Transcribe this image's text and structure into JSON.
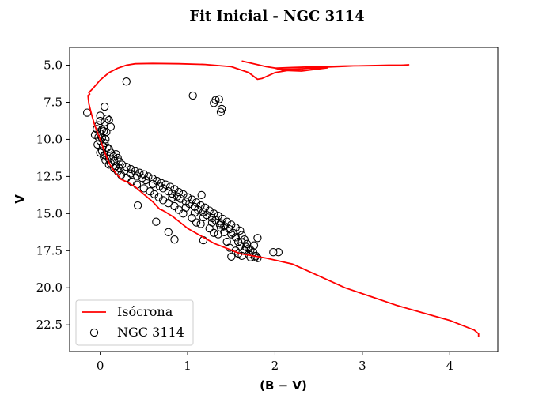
{
  "chart_data": {
    "type": "scatter",
    "title": "Fit Inicial - NGC 3114",
    "xlabel": "(B − V)",
    "ylabel": "V",
    "xlim": [
      -0.35,
      4.55
    ],
    "ylim": [
      24.3,
      3.8
    ],
    "y_inverted": true,
    "xticks": [
      0,
      1,
      2,
      3,
      4
    ],
    "yticks": [
      5.0,
      7.5,
      10.0,
      12.5,
      15.0,
      17.5,
      20.0,
      22.5
    ],
    "xtick_labels": [
      "0",
      "1",
      "2",
      "3",
      "4"
    ],
    "ytick_labels": [
      "5.0",
      "7.5",
      "10.0",
      "12.5",
      "15.0",
      "17.5",
      "20.0",
      "22.5"
    ],
    "grid": false,
    "legend_position": "lower-left",
    "series": [
      {
        "name": "Isócrona",
        "type": "line",
        "color": "#ff0000",
        "points": [
          [
            4.33,
            23.3
          ],
          [
            4.33,
            23.1
          ],
          [
            4.28,
            22.85
          ],
          [
            4.0,
            22.2
          ],
          [
            3.7,
            21.7
          ],
          [
            3.4,
            21.2
          ],
          [
            3.1,
            20.6
          ],
          [
            2.8,
            20.0
          ],
          [
            2.5,
            19.2
          ],
          [
            2.2,
            18.4
          ],
          [
            1.9,
            18.0
          ],
          [
            1.6,
            17.7
          ],
          [
            1.3,
            17.0
          ],
          [
            1.0,
            16.0
          ],
          [
            0.83,
            15.2
          ],
          [
            0.75,
            14.9
          ],
          [
            0.72,
            14.8
          ],
          [
            0.68,
            14.7
          ],
          [
            0.6,
            14.2
          ],
          [
            0.5,
            13.7
          ],
          [
            0.4,
            13.2
          ],
          [
            0.3,
            12.85
          ],
          [
            0.24,
            12.7
          ],
          [
            0.22,
            12.55
          ],
          [
            0.18,
            12.3
          ],
          [
            0.12,
            11.8
          ],
          [
            0.08,
            11.3
          ],
          [
            0.04,
            10.7
          ],
          [
            0.0,
            10.0
          ],
          [
            -0.06,
            9.1
          ],
          [
            -0.1,
            8.3
          ],
          [
            -0.13,
            7.6
          ],
          [
            -0.14,
            7.05
          ],
          [
            -0.12,
            6.95
          ],
          [
            -0.13,
            6.85
          ],
          [
            -0.08,
            6.55
          ],
          [
            0.0,
            6.0
          ],
          [
            0.1,
            5.5
          ],
          [
            0.2,
            5.2
          ],
          [
            0.3,
            5.0
          ],
          [
            0.4,
            4.9
          ],
          [
            0.6,
            4.88
          ],
          [
            0.9,
            4.9
          ],
          [
            1.2,
            4.95
          ],
          [
            1.5,
            5.1
          ],
          [
            1.7,
            5.5
          ],
          [
            1.8,
            5.95
          ],
          [
            1.85,
            5.9
          ],
          [
            2.0,
            5.5
          ],
          [
            2.2,
            5.3
          ],
          [
            2.5,
            5.15
          ],
          [
            2.9,
            5.05
          ],
          [
            3.3,
            5.0
          ],
          [
            3.5,
            5.0
          ],
          [
            3.53,
            4.97
          ],
          [
            3.4,
            5.02
          ],
          [
            2.8,
            5.05
          ],
          [
            2.2,
            5.15
          ],
          [
            2.0,
            5.2
          ],
          [
            2.1,
            5.35
          ],
          [
            2.3,
            5.4
          ],
          [
            2.6,
            5.18
          ],
          [
            2.1,
            5.28
          ],
          [
            1.9,
            5.1
          ],
          [
            1.62,
            4.72
          ]
        ]
      },
      {
        "name": "NGC 3114",
        "type": "scatter",
        "marker": "open-circle",
        "color": "#000000",
        "points": [
          [
            0.3,
            6.1
          ],
          [
            1.06,
            7.05
          ],
          [
            1.36,
            7.3
          ],
          [
            1.32,
            7.35
          ],
          [
            1.3,
            7.55
          ],
          [
            1.39,
            7.95
          ],
          [
            1.38,
            8.15
          ],
          [
            0.05,
            7.8
          ],
          [
            -0.15,
            8.2
          ],
          [
            0.0,
            8.4
          ],
          [
            0.08,
            8.6
          ],
          [
            0.1,
            8.7
          ],
          [
            0.0,
            8.75
          ],
          [
            0.05,
            8.85
          ],
          [
            -0.02,
            9.05
          ],
          [
            -0.04,
            9.3
          ],
          [
            0.02,
            9.35
          ],
          [
            0.04,
            9.45
          ],
          [
            0.0,
            9.6
          ],
          [
            -0.06,
            9.7
          ],
          [
            -0.02,
            9.85
          ],
          [
            0.06,
            10.0
          ],
          [
            0.0,
            10.1
          ],
          [
            -0.03,
            10.35
          ],
          [
            0.03,
            10.45
          ],
          [
            0.08,
            10.55
          ],
          [
            0.1,
            10.65
          ],
          [
            0.02,
            10.8
          ],
          [
            0.12,
            10.9
          ],
          [
            0.18,
            11.0
          ],
          [
            0.05,
            11.05
          ],
          [
            0.15,
            11.15
          ],
          [
            0.2,
            11.25
          ],
          [
            0.1,
            11.3
          ],
          [
            0.16,
            11.45
          ],
          [
            0.22,
            11.5
          ],
          [
            0.12,
            11.6
          ],
          [
            0.25,
            11.7
          ],
          [
            0.18,
            11.8
          ],
          [
            0.3,
            11.85
          ],
          [
            0.22,
            11.95
          ],
          [
            0.35,
            12.0
          ],
          [
            0.28,
            12.1
          ],
          [
            0.4,
            12.15
          ],
          [
            0.45,
            12.25
          ],
          [
            0.35,
            12.3
          ],
          [
            0.5,
            12.35
          ],
          [
            0.42,
            12.45
          ],
          [
            0.55,
            12.5
          ],
          [
            0.48,
            12.6
          ],
          [
            0.6,
            12.65
          ],
          [
            0.52,
            12.75
          ],
          [
            0.65,
            12.8
          ],
          [
            0.7,
            12.95
          ],
          [
            0.6,
            13.0
          ],
          [
            0.75,
            13.05
          ],
          [
            0.68,
            13.15
          ],
          [
            0.8,
            13.2
          ],
          [
            0.72,
            13.3
          ],
          [
            0.85,
            13.35
          ],
          [
            0.78,
            13.5
          ],
          [
            0.9,
            13.55
          ],
          [
            0.82,
            13.65
          ],
          [
            0.95,
            13.7
          ],
          [
            0.88,
            13.85
          ],
          [
            1.0,
            13.9
          ],
          [
            0.92,
            14.0
          ],
          [
            1.05,
            14.05
          ],
          [
            0.98,
            14.2
          ],
          [
            1.1,
            14.25
          ],
          [
            1.02,
            14.35
          ],
          [
            1.15,
            14.45
          ],
          [
            1.08,
            14.55
          ],
          [
            1.2,
            14.6
          ],
          [
            1.12,
            14.75
          ],
          [
            1.25,
            14.8
          ],
          [
            1.18,
            14.9
          ],
          [
            1.3,
            15.0
          ],
          [
            1.22,
            15.1
          ],
          [
            1.35,
            15.15
          ],
          [
            1.28,
            15.3
          ],
          [
            1.4,
            15.35
          ],
          [
            1.32,
            15.45
          ],
          [
            1.45,
            15.55
          ],
          [
            1.38,
            15.65
          ],
          [
            1.5,
            15.75
          ],
          [
            1.42,
            15.85
          ],
          [
            1.55,
            15.95
          ],
          [
            1.48,
            16.05
          ],
          [
            1.6,
            16.15
          ],
          [
            1.52,
            16.3
          ],
          [
            1.62,
            16.45
          ],
          [
            1.55,
            16.6
          ],
          [
            1.65,
            16.75
          ],
          [
            1.58,
            16.9
          ],
          [
            1.68,
            17.05
          ],
          [
            1.6,
            17.2
          ],
          [
            1.7,
            17.35
          ],
          [
            1.65,
            17.5
          ],
          [
            1.75,
            17.6
          ],
          [
            1.7,
            17.75
          ],
          [
            1.78,
            17.85
          ],
          [
            1.72,
            17.95
          ],
          [
            1.8,
            18.0
          ],
          [
            1.58,
            17.7
          ],
          [
            1.48,
            17.3
          ],
          [
            1.55,
            17.5
          ],
          [
            1.45,
            16.9
          ],
          [
            1.35,
            16.4
          ],
          [
            1.25,
            16.0
          ],
          [
            1.15,
            15.7
          ],
          [
            1.05,
            15.3
          ],
          [
            0.95,
            15.0
          ],
          [
            0.9,
            14.75
          ],
          [
            0.85,
            14.5
          ],
          [
            0.78,
            14.3
          ],
          [
            0.72,
            14.1
          ],
          [
            0.67,
            13.9
          ],
          [
            0.62,
            13.7
          ],
          [
            0.57,
            13.5
          ],
          [
            0.5,
            13.3
          ],
          [
            0.42,
            13.05
          ],
          [
            0.36,
            12.85
          ],
          [
            0.3,
            12.6
          ],
          [
            0.24,
            12.4
          ],
          [
            0.2,
            12.15
          ],
          [
            0.16,
            11.95
          ],
          [
            0.1,
            11.7
          ],
          [
            0.06,
            11.4
          ],
          [
            0.04,
            11.15
          ],
          [
            0.0,
            10.9
          ],
          [
            0.05,
            10.25
          ],
          [
            0.02,
            9.9
          ],
          [
            0.07,
            9.5
          ],
          [
            0.12,
            9.15
          ],
          [
            1.08,
            14.95
          ],
          [
            1.18,
            15.25
          ],
          [
            1.28,
            15.6
          ],
          [
            1.38,
            15.95
          ],
          [
            1.5,
            16.4
          ],
          [
            1.62,
            16.95
          ],
          [
            1.72,
            17.45
          ],
          [
            1.76,
            17.15
          ],
          [
            1.8,
            16.65
          ],
          [
            1.16,
            13.75
          ],
          [
            1.37,
            15.75
          ],
          [
            1.42,
            16.25
          ],
          [
            1.62,
            17.85
          ],
          [
            1.77,
            17.95
          ],
          [
            1.67,
            17.25
          ],
          [
            0.43,
            14.45
          ],
          [
            0.64,
            15.55
          ],
          [
            0.78,
            16.25
          ],
          [
            0.85,
            16.75
          ],
          [
            1.18,
            16.8
          ],
          [
            1.98,
            17.6
          ],
          [
            2.04,
            17.6
          ],
          [
            1.5,
            17.9
          ],
          [
            1.3,
            16.3
          ],
          [
            1.1,
            15.6
          ],
          [
            0.98,
            14.6
          ],
          [
            0.82,
            13.95
          ]
        ]
      }
    ]
  }
}
